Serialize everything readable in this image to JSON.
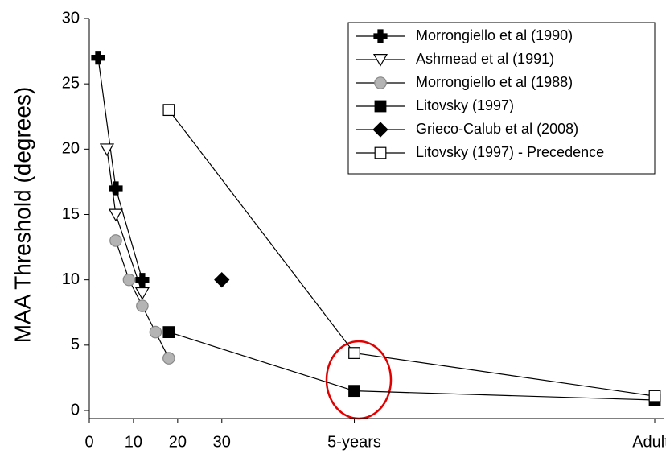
{
  "chart_data": {
    "type": "line",
    "y_label": "MAA Threshold (degrees)",
    "xlim": [
      0,
      130
    ],
    "ylim": [
      0,
      30
    ],
    "xticks": [
      0,
      10,
      20,
      30,
      {
        "value": 60,
        "label": "5-years"
      },
      {
        "value": 128,
        "label": "Adults"
      }
    ],
    "yticks": [
      0,
      5,
      10,
      15,
      20,
      25,
      30
    ],
    "legend": "upper right",
    "series": [
      {
        "name": "Morrongiello et al (1990)",
        "marker": "plus",
        "color": "#000000",
        "x": [
          2,
          6,
          12
        ],
        "values": [
          27,
          17,
          10
        ]
      },
      {
        "name": "Ashmead et al (1991)",
        "marker": "triangle-down",
        "color": "#ffffff",
        "x": [
          4,
          6,
          12
        ],
        "values": [
          20,
          15,
          9
        ]
      },
      {
        "name": "Morrongiello et al (1988)",
        "marker": "circle",
        "color": "#b4b4b4",
        "x": [
          6,
          9,
          12,
          15,
          18
        ],
        "values": [
          13,
          10,
          8,
          6,
          4
        ]
      },
      {
        "name": "Litovsky (1997)",
        "marker": "square",
        "color": "#000000",
        "x": [
          18,
          60,
          128
        ],
        "values": [
          6,
          1.5,
          0.8
        ]
      },
      {
        "name": "Grieco-Calub et al (2008)",
        "marker": "diamond",
        "color": "#000000",
        "x": [
          30
        ],
        "values": [
          10
        ]
      },
      {
        "name": "Litovsky (1997) - Precedence",
        "marker": "square",
        "color": "#ffffff",
        "x": [
          18,
          60,
          128
        ],
        "values": [
          23,
          4.4,
          1.1
        ]
      }
    ]
  }
}
